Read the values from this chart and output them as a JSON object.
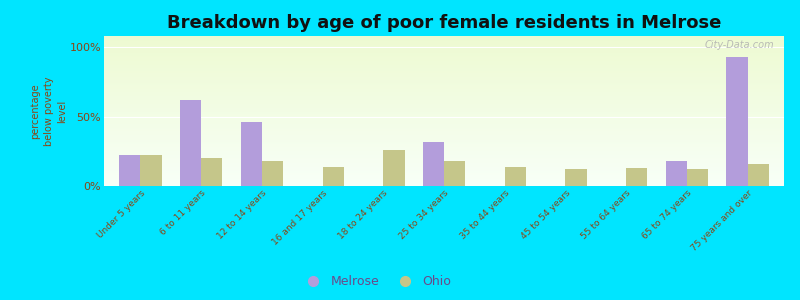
{
  "title": "Breakdown by age of poor female residents in Melrose",
  "ylabel": "percentage\nbelow poverty\nlevel",
  "categories": [
    "Under 5 years",
    "6 to 11 years",
    "12 to 14 years",
    "16 and 17 years",
    "18 to 24 years",
    "25 to 34 years",
    "35 to 44 years",
    "45 to 54 years",
    "55 to 64 years",
    "65 to 74 years",
    "75 years and over"
  ],
  "melrose": [
    22,
    62,
    46,
    0,
    0,
    32,
    0,
    0,
    0,
    18,
    93
  ],
  "ohio": [
    22,
    20,
    18,
    14,
    26,
    18,
    14,
    12,
    13,
    12,
    16
  ],
  "melrose_color": "#b39ddb",
  "ohio_color": "#c5c68a",
  "bg_outer": "#00e5ff",
  "yticks": [
    0,
    50,
    100
  ],
  "ytick_labels": [
    "0%",
    "50%",
    "100%"
  ],
  "ylim": [
    0,
    108
  ],
  "title_fontsize": 13,
  "bar_width": 0.35,
  "legend_labels": [
    "Melrose",
    "Ohio"
  ],
  "tick_color": "#8B4513",
  "label_color": "#6a4a8a",
  "watermark": "City-Data.com"
}
